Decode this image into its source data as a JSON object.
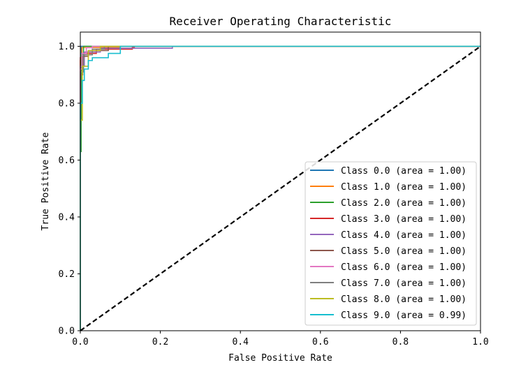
{
  "chart_data": {
    "type": "line",
    "title": "Receiver Operating Characteristic",
    "xlabel": "False Positive Rate",
    "ylabel": "True Positive Rate",
    "xlim": [
      0.0,
      1.0
    ],
    "ylim": [
      0.0,
      1.05
    ],
    "x_ticks": [
      "0.0",
      "0.2",
      "0.4",
      "0.6",
      "0.8",
      "1.0"
    ],
    "y_ticks": [
      "0.0",
      "0.2",
      "0.4",
      "0.6",
      "0.8",
      "1.0"
    ],
    "legend_position": "lower-right",
    "grid": false,
    "diagonal": {
      "x": [
        0,
        1
      ],
      "y": [
        0,
        1
      ],
      "style": "dashed",
      "color": "#000000"
    },
    "series": [
      {
        "name": "Class 0.0 (area = 1.00)",
        "color": "#1f77b4",
        "x": [
          0,
          0,
          0.002,
          0.002,
          1.0
        ],
        "y": [
          0,
          0.9,
          0.9,
          1.0,
          1.0
        ]
      },
      {
        "name": "Class 1.0 (area = 1.00)",
        "color": "#ff7f0e",
        "x": [
          0,
          0,
          0.004,
          0.004,
          0.1,
          0.1,
          1.0
        ],
        "y": [
          0,
          0.95,
          0.95,
          0.996,
          0.996,
          1.0,
          1.0
        ]
      },
      {
        "name": "Class 2.0 (area = 1.00)",
        "color": "#2ca02c",
        "x": [
          0,
          0,
          0.002,
          0.002,
          0.008,
          0.008,
          1.0
        ],
        "y": [
          0,
          0.63,
          0.63,
          0.97,
          0.97,
          1.0,
          1.0
        ]
      },
      {
        "name": "Class 3.0 (area = 1.00)",
        "color": "#d62728",
        "x": [
          0,
          0,
          0.01,
          0.01,
          0.04,
          0.04,
          0.13,
          0.13,
          0.135,
          0.135,
          1.0
        ],
        "y": [
          0,
          0.96,
          0.96,
          0.975,
          0.975,
          0.99,
          0.99,
          0.997,
          0.997,
          1.0,
          1.0
        ]
      },
      {
        "name": "Class 4.0 (area = 1.00)",
        "color": "#9467bd",
        "x": [
          0,
          0,
          0.01,
          0.01,
          0.05,
          0.05,
          0.23,
          0.23,
          1.0
        ],
        "y": [
          0,
          0.93,
          0.93,
          0.98,
          0.98,
          0.993,
          0.993,
          1.0,
          1.0
        ]
      },
      {
        "name": "Class 5.0 (area = 1.00)",
        "color": "#8c564b",
        "x": [
          0,
          0,
          0.006,
          0.006,
          0.02,
          0.02,
          0.07,
          0.07,
          1.0
        ],
        "y": [
          0,
          0.9,
          0.9,
          0.965,
          0.965,
          0.985,
          0.985,
          1.0,
          1.0
        ]
      },
      {
        "name": "Class 6.0 (area = 1.00)",
        "color": "#e377c2",
        "x": [
          0,
          0,
          0.004,
          0.004,
          0.015,
          0.015,
          0.03,
          0.03,
          1.0
        ],
        "y": [
          0,
          0.92,
          0.92,
          0.975,
          0.975,
          0.995,
          0.995,
          1.0,
          1.0
        ]
      },
      {
        "name": "Class 7.0 (area = 1.00)",
        "color": "#7f7f7f",
        "x": [
          0,
          0,
          0.008,
          0.008,
          0.03,
          0.03,
          0.06,
          0.06,
          1.0
        ],
        "y": [
          0,
          0.91,
          0.91,
          0.97,
          0.97,
          0.99,
          0.99,
          1.0,
          1.0
        ]
      },
      {
        "name": "Class 8.0 (area = 1.00)",
        "color": "#bcbd22",
        "x": [
          0,
          0,
          0.005,
          0.005,
          0.02,
          0.02,
          0.05,
          0.05,
          1.0
        ],
        "y": [
          0,
          0.74,
          0.74,
          0.93,
          0.93,
          0.985,
          0.985,
          1.0,
          1.0
        ]
      },
      {
        "name": "Class 9.0 (area = 0.99)",
        "color": "#17becf",
        "x": [
          0,
          0,
          0.005,
          0.005,
          0.01,
          0.01,
          0.02,
          0.02,
          0.03,
          0.03,
          0.07,
          0.07,
          0.1,
          0.1,
          1.0
        ],
        "y": [
          0,
          0.8,
          0.8,
          0.88,
          0.88,
          0.92,
          0.92,
          0.95,
          0.95,
          0.96,
          0.96,
          0.975,
          0.975,
          1.0,
          1.0
        ]
      }
    ]
  }
}
